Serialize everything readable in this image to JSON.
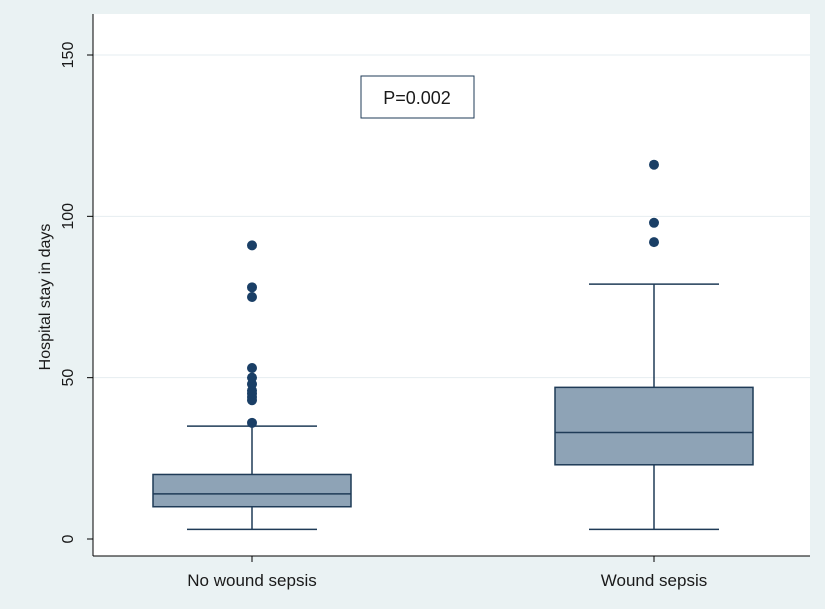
{
  "colors": {
    "outer_background": "#eaf2f3",
    "plot_background": "#ffffff",
    "box_fill": "#8ea3b6",
    "box_stroke": "#1f3b57",
    "outlier": "#1a3f66",
    "gridline": "#e6edf0"
  },
  "annotation": {
    "text": "P=0.002"
  },
  "chart_data": {
    "type": "box",
    "title": "",
    "xlabel": "",
    "ylabel": "Hospital stay in days",
    "ylim": [
      0,
      155
    ],
    "yticks": [
      0,
      50,
      100,
      150
    ],
    "grid": true,
    "categories": [
      "No wound sepsis",
      "Wound sepsis"
    ],
    "boxes": [
      {
        "category": "No wound sepsis",
        "whisker_low": 3,
        "q1": 10,
        "median": 14,
        "q3": 20,
        "whisker_high": 35,
        "outliers": [
          36,
          43,
          44,
          45,
          46,
          48,
          50,
          53,
          75,
          78,
          91
        ]
      },
      {
        "category": "Wound sepsis",
        "whisker_low": 3,
        "q1": 23,
        "median": 33,
        "q3": 47,
        "whisker_high": 79,
        "outliers": [
          92,
          98,
          116
        ]
      }
    ]
  }
}
